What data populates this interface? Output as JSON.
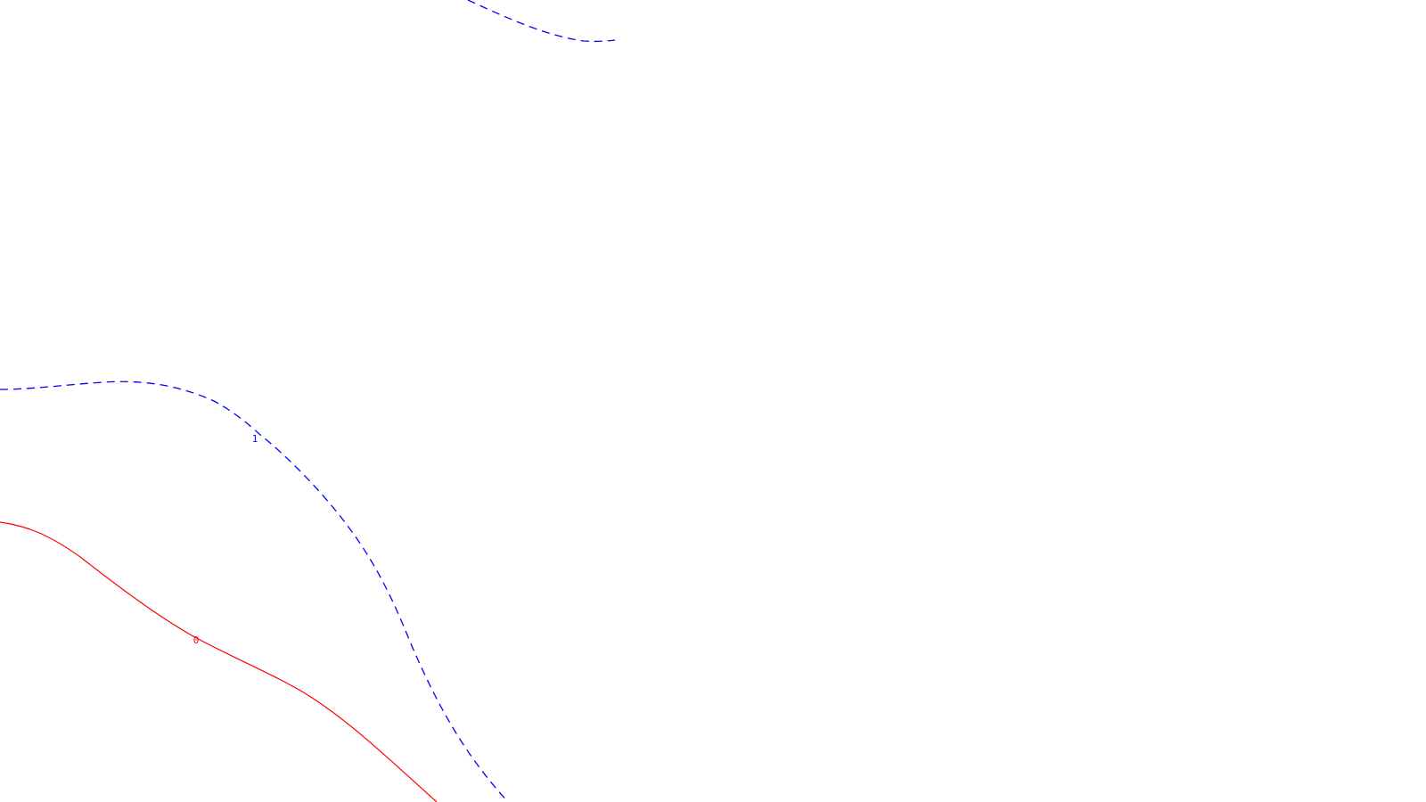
{
  "chart_data": {
    "type": "contour",
    "title": "",
    "xlabel": "",
    "ylabel": "",
    "axes_visible": false,
    "grid": false,
    "levels": [
      {
        "value": "1",
        "label": "1",
        "color": "#0000ff",
        "style": "dashed",
        "segments": 2
      },
      {
        "value": "0",
        "label": "0",
        "color": "#ff0000",
        "style": "solid",
        "segments": 1
      }
    ]
  }
}
